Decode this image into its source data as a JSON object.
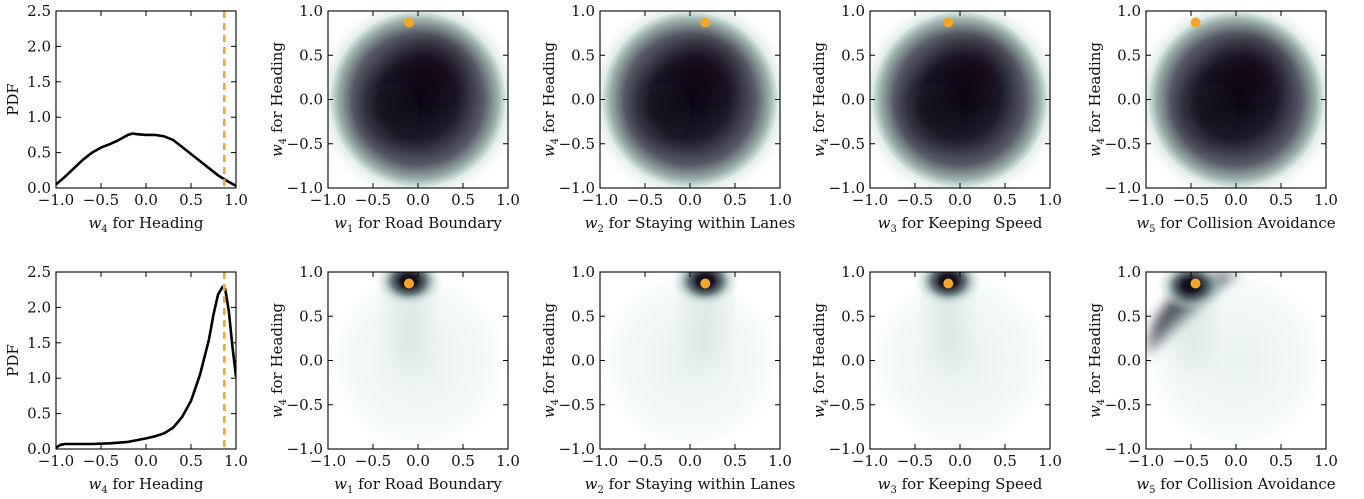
{
  "chart_data": [
    {
      "type": "line",
      "panel": "top-pdf",
      "ylabel": "PDF",
      "xlabel_parts": [
        "w",
        "4",
        " for Heading"
      ],
      "xlim": [
        -1.0,
        1.0
      ],
      "ylim": [
        0.0,
        2.5
      ],
      "xticks": [
        "−1.0",
        "−0.5",
        "0.0",
        "0.5",
        "1.0"
      ],
      "yticks": [
        "0.0",
        "0.5",
        "1.0",
        "1.5",
        "2.0",
        "2.5"
      ],
      "x": [
        -1.0,
        -0.9,
        -0.8,
        -0.7,
        -0.6,
        -0.5,
        -0.4,
        -0.3,
        -0.2,
        -0.15,
        -0.1,
        0.0,
        0.1,
        0.2,
        0.3,
        0.4,
        0.5,
        0.6,
        0.7,
        0.8,
        0.9,
        1.0
      ],
      "y": [
        0.05,
        0.16,
        0.28,
        0.4,
        0.5,
        0.57,
        0.62,
        0.68,
        0.75,
        0.77,
        0.76,
        0.75,
        0.75,
        0.73,
        0.68,
        0.58,
        0.48,
        0.38,
        0.28,
        0.18,
        0.1,
        0.03
      ],
      "reference_line_x": 0.87,
      "reference_line_color": "#f5a623"
    },
    {
      "type": "heatmap",
      "panel": "top-w1",
      "xlabel_parts": [
        "w",
        "1",
        " for Road Boundary"
      ],
      "ylabel_parts": [
        "w",
        "4",
        " for Heading"
      ],
      "xlim": [
        -1,
        1
      ],
      "ylim": [
        -1,
        1
      ],
      "xticks": [
        "−1.0",
        "−0.5",
        "0.0",
        "0.5",
        "1.0"
      ],
      "yticks": [
        "−1.0",
        "−0.5",
        "0.0",
        "0.5",
        "1.0"
      ],
      "marker": {
        "x": -0.1,
        "y": 0.87
      },
      "density": "uniform-disk"
    },
    {
      "type": "heatmap",
      "panel": "top-w2",
      "xlabel_parts": [
        "w",
        "2",
        " for Staying within Lanes"
      ],
      "ylabel_parts": [
        "w",
        "4",
        " for Heading"
      ],
      "xlim": [
        -1,
        1
      ],
      "ylim": [
        -1,
        1
      ],
      "xticks": [
        "−1.0",
        "−0.5",
        "0.0",
        "0.5",
        "1.0"
      ],
      "yticks": [
        "−1.0",
        "−0.5",
        "0.0",
        "0.5",
        "1.0"
      ],
      "marker": {
        "x": 0.17,
        "y": 0.87
      },
      "density": "uniform-disk"
    },
    {
      "type": "heatmap",
      "panel": "top-w3",
      "xlabel_parts": [
        "w",
        "3",
        " for Keeping Speed"
      ],
      "ylabel_parts": [
        "w",
        "4",
        " for Heading"
      ],
      "xlim": [
        -1,
        1
      ],
      "ylim": [
        -1,
        1
      ],
      "xticks": [
        "−1.0",
        "−0.5",
        "0.0",
        "0.5",
        "1.0"
      ],
      "yticks": [
        "−1.0",
        "−0.5",
        "0.0",
        "0.5",
        "1.0"
      ],
      "marker": {
        "x": -0.13,
        "y": 0.87
      },
      "density": "uniform-disk"
    },
    {
      "type": "heatmap",
      "panel": "top-w5",
      "xlabel_parts": [
        "w",
        "5",
        " for Collision Avoidance"
      ],
      "ylabel_parts": [
        "w",
        "4",
        " for Heading"
      ],
      "xlim": [
        -1,
        1
      ],
      "ylim": [
        -1,
        1
      ],
      "xticks": [
        "−1.0",
        "−0.5",
        "0.0",
        "0.5",
        "1.0"
      ],
      "yticks": [
        "−1.0",
        "−0.5",
        "0.0",
        "0.5",
        "1.0"
      ],
      "marker": {
        "x": -0.45,
        "y": 0.87
      },
      "density": "uniform-disk"
    },
    {
      "type": "line",
      "panel": "bottom-pdf",
      "ylabel": "PDF",
      "xlabel_parts": [
        "w",
        "4",
        " for Heading"
      ],
      "xlim": [
        -1.0,
        1.0
      ],
      "ylim": [
        0.0,
        2.5
      ],
      "xticks": [
        "−1.0",
        "−0.5",
        "0.0",
        "0.5",
        "1.0"
      ],
      "yticks": [
        "0.0",
        "0.5",
        "1.0",
        "1.5",
        "2.0",
        "2.5"
      ],
      "x": [
        -1.0,
        -0.95,
        -0.9,
        -0.8,
        -0.6,
        -0.4,
        -0.2,
        0.0,
        0.1,
        0.2,
        0.3,
        0.4,
        0.5,
        0.6,
        0.7,
        0.75,
        0.8,
        0.85,
        0.88,
        0.92,
        0.96,
        1.0
      ],
      "y": [
        0.02,
        0.06,
        0.07,
        0.07,
        0.07,
        0.08,
        0.1,
        0.15,
        0.18,
        0.22,
        0.3,
        0.45,
        0.68,
        1.05,
        1.55,
        1.9,
        2.18,
        2.29,
        2.26,
        1.95,
        1.45,
        1.02
      ],
      "reference_line_x": 0.87,
      "reference_line_color": "#f5a623"
    },
    {
      "type": "heatmap",
      "panel": "bottom-w1",
      "xlabel_parts": [
        "w",
        "1",
        " for Road Boundary"
      ],
      "ylabel_parts": [
        "w",
        "4",
        " for Heading"
      ],
      "xlim": [
        -1,
        1
      ],
      "ylim": [
        -1,
        1
      ],
      "xticks": [
        "−1.0",
        "−0.5",
        "0.0",
        "0.5",
        "1.0"
      ],
      "yticks": [
        "−1.0",
        "−0.5",
        "0.0",
        "0.5",
        "1.0"
      ],
      "marker": {
        "x": -0.1,
        "y": 0.87
      },
      "density": "peak",
      "peak": {
        "x": -0.1,
        "y": 0.9
      }
    },
    {
      "type": "heatmap",
      "panel": "bottom-w2",
      "xlabel_parts": [
        "w",
        "2",
        " for Staying within Lanes"
      ],
      "ylabel_parts": [
        "w",
        "4",
        " for Heading"
      ],
      "xlim": [
        -1,
        1
      ],
      "ylim": [
        -1,
        1
      ],
      "xticks": [
        "−1.0",
        "−0.5",
        "0.0",
        "0.5",
        "1.0"
      ],
      "yticks": [
        "−1.0",
        "−0.5",
        "0.0",
        "0.5",
        "1.0"
      ],
      "marker": {
        "x": 0.17,
        "y": 0.87
      },
      "density": "peak",
      "peak": {
        "x": 0.17,
        "y": 0.9
      }
    },
    {
      "type": "heatmap",
      "panel": "bottom-w3",
      "xlabel_parts": [
        "w",
        "3",
        " for Keeping Speed"
      ],
      "ylabel_parts": [
        "w",
        "4",
        " for Heading"
      ],
      "xlim": [
        -1,
        1
      ],
      "ylim": [
        -1,
        1
      ],
      "xticks": [
        "−1.0",
        "−0.5",
        "0.0",
        "0.5",
        "1.0"
      ],
      "yticks": [
        "−1.0",
        "−0.5",
        "0.0",
        "0.5",
        "1.0"
      ],
      "marker": {
        "x": -0.13,
        "y": 0.87
      },
      "density": "peak",
      "peak": {
        "x": -0.13,
        "y": 0.9
      }
    },
    {
      "type": "heatmap",
      "panel": "bottom-w5",
      "xlabel_parts": [
        "w",
        "5",
        " for Collision Avoidance"
      ],
      "ylabel_parts": [
        "w",
        "4",
        " for Heading"
      ],
      "xlim": [
        -1,
        1
      ],
      "ylim": [
        -1,
        1
      ],
      "xticks": [
        "−1.0",
        "−0.5",
        "0.0",
        "0.5",
        "1.0"
      ],
      "yticks": [
        "−1.0",
        "−0.5",
        "0.0",
        "0.5",
        "1.0"
      ],
      "marker": {
        "x": -0.45,
        "y": 0.87
      },
      "density": "arc-peak",
      "peak": {
        "x": -0.5,
        "y": 0.85
      }
    }
  ],
  "colors": {
    "marker": "#f5a623",
    "reference_line": "#f5a623",
    "density_dark": "#0b0812",
    "density_light": "#c7dcd6"
  }
}
